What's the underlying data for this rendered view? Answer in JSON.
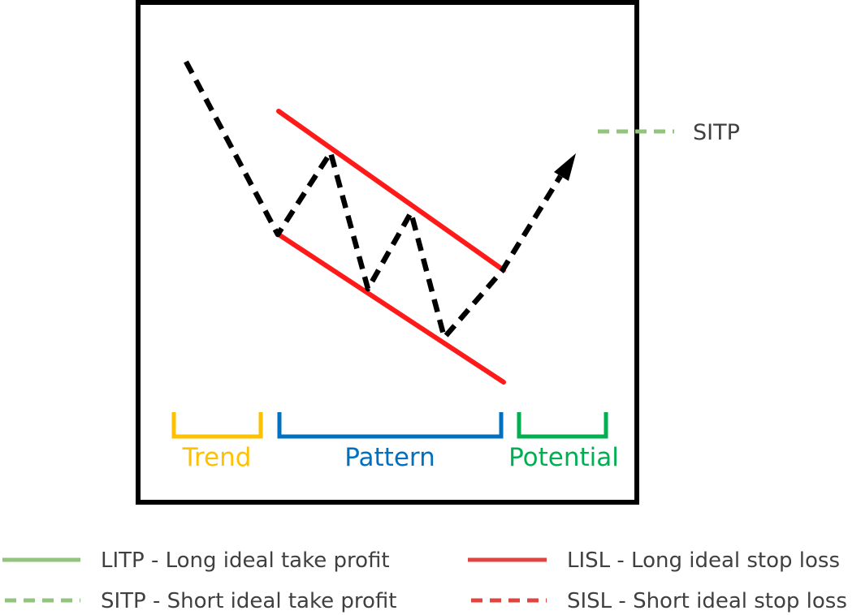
{
  "diagram": {
    "phases": {
      "trend": "Trend",
      "pattern": "Pattern",
      "potential": "Potential"
    },
    "target_label": "SITP"
  },
  "legend": {
    "litp": "LITP - Long ideal take profit",
    "lisl": "LISL - Long ideal stop loss",
    "sitp": "SITP - Short ideal take profit",
    "sisl": "SISL - Short ideal stop loss"
  },
  "colors": {
    "frame": "#000000",
    "stop_loss": "#ff1a1a",
    "price_path": "#000000",
    "trend": "#ffc000",
    "pattern": "#0070c0",
    "potential": "#00b050",
    "take_profit": "#93c47d",
    "legend_stop_loss": "#e0443e",
    "text": "#404040"
  }
}
